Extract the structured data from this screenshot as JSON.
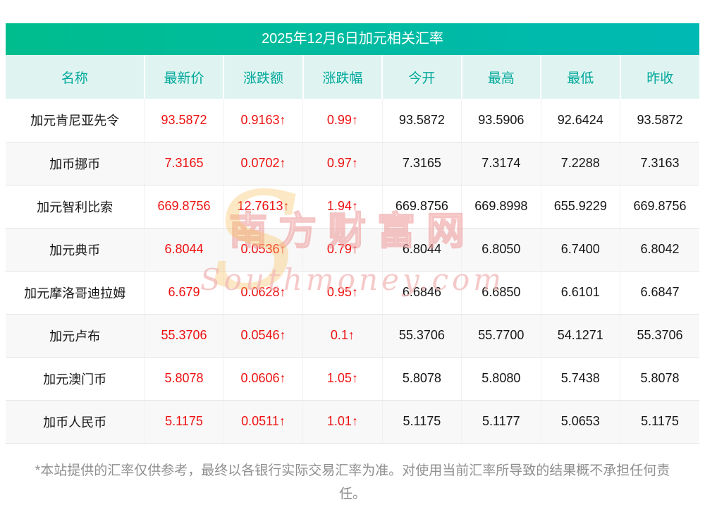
{
  "title": "2025年12月6日加元相关汇率",
  "watermark": {
    "cn": "南方财富网",
    "en": "Southmoney.com",
    "logo_letter": "S"
  },
  "table": {
    "headers": [
      "名称",
      "最新价",
      "涨跌额",
      "涨跌幅",
      "今开",
      "最高",
      "最低",
      "昨收"
    ],
    "col_names": [
      "cell-name",
      "cell-latest-price",
      "cell-change-amount",
      "cell-change-percent",
      "cell-open",
      "cell-high",
      "cell-low",
      "cell-prev-close"
    ],
    "red_columns": [
      1,
      2,
      3
    ],
    "rows": [
      [
        "加元肯尼亚先令",
        "93.5872",
        "0.9163↑",
        "0.99↑",
        "93.5872",
        "93.5906",
        "92.6424",
        "93.5872"
      ],
      [
        "加币挪币",
        "7.3165",
        "0.0702↑",
        "0.97↑",
        "7.3165",
        "7.3174",
        "7.2288",
        "7.3163"
      ],
      [
        "加元智利比索",
        "669.8756",
        "12.7613↑",
        "1.94↑",
        "669.8756",
        "669.8998",
        "655.9229",
        "669.8756"
      ],
      [
        "加元典币",
        "6.8044",
        "0.0536↑",
        "0.79↑",
        "6.8044",
        "6.8050",
        "6.7400",
        "6.8042"
      ],
      [
        "加元摩洛哥迪拉姆",
        "6.679",
        "0.0628↑",
        "0.95↑",
        "6.6846",
        "6.6850",
        "6.6101",
        "6.6847"
      ],
      [
        "加元卢布",
        "55.3706",
        "0.0546↑",
        "0.1↑",
        "55.3706",
        "55.7700",
        "54.1271",
        "55.3706"
      ],
      [
        "加元澳门币",
        "5.8078",
        "0.0606↑",
        "1.05↑",
        "5.8078",
        "5.8080",
        "5.7438",
        "5.8078"
      ],
      [
        "加币人民币",
        "5.1175",
        "0.0511↑",
        "1.01↑",
        "5.1175",
        "5.1177",
        "5.0653",
        "5.1175"
      ]
    ]
  },
  "footer": {
    "text": "*本站提供的汇率仅供参考，最终以各银行实际交易汇率为准。对使用当前汇率所导致的结果概不承担任何责任。"
  },
  "colors": {
    "title_grad_start": "#00bd8e",
    "title_grad_end": "#00b9b4",
    "header_bg": "#dff4f0",
    "header_text": "#00a89b",
    "red": "#ee1111",
    "text": "#161616",
    "divider": "#e6e6e6",
    "row_alt": "#f8f8f8",
    "footer_text": "#8f8f8f",
    "watermark_pink": "#f2b8b8",
    "watermark_orange": "#f8c05a"
  }
}
